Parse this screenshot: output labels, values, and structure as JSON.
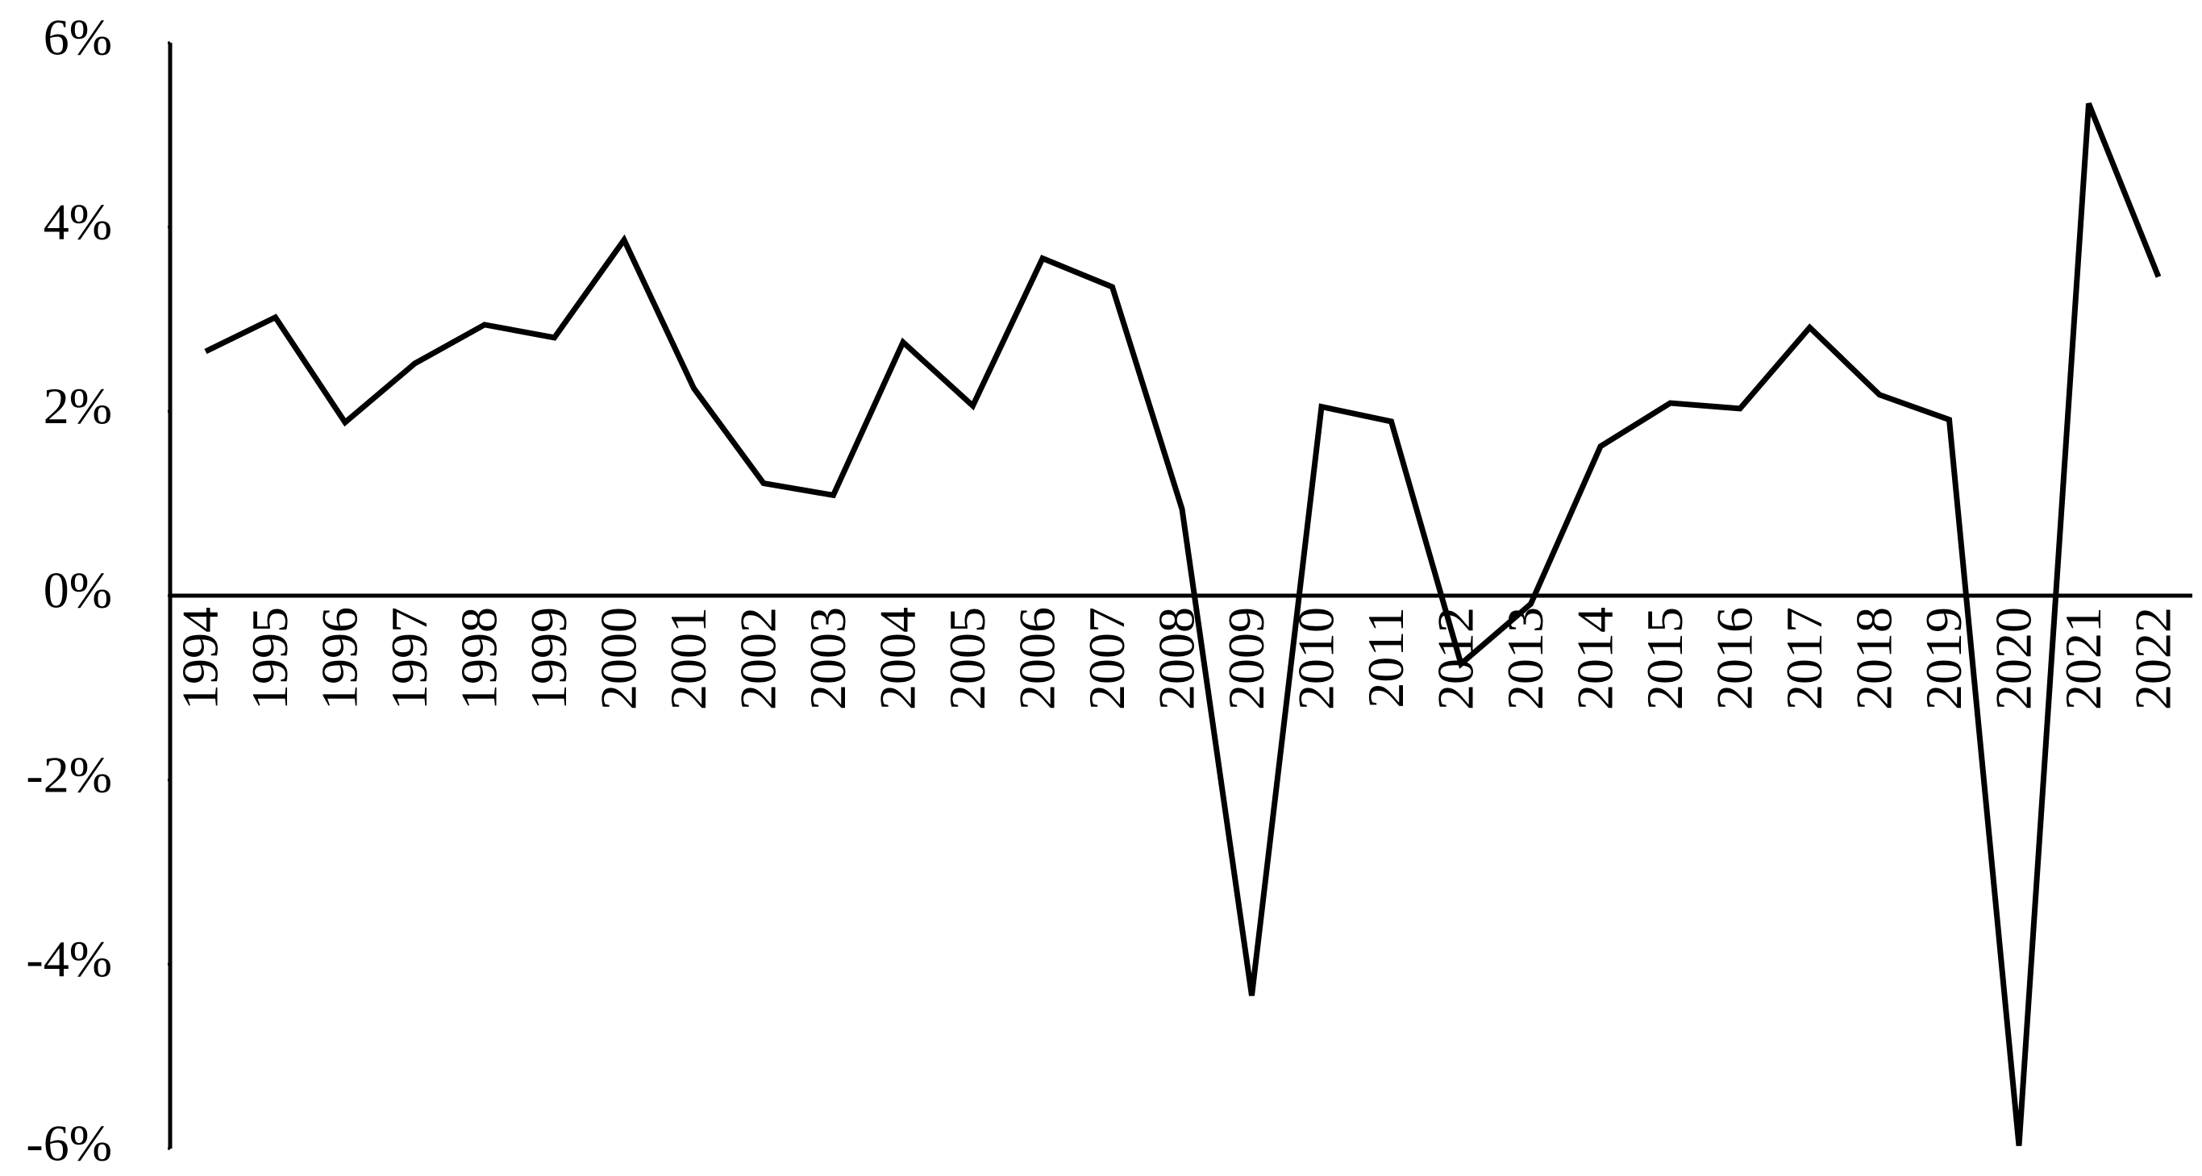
{
  "chart_data": {
    "type": "line",
    "categories": [
      "1994",
      "1995",
      "1996",
      "1997",
      "1998",
      "1999",
      "2000",
      "2001",
      "2002",
      "2003",
      "2004",
      "2005",
      "2006",
      "2007",
      "2008",
      "2009",
      "2010",
      "2011",
      "2012",
      "2013",
      "2014",
      "2015",
      "2016",
      "2017",
      "2018",
      "2019",
      "2020",
      "2021",
      "2022"
    ],
    "values": [
      2.65,
      3.02,
      1.88,
      2.52,
      2.94,
      2.8,
      3.86,
      2.25,
      1.22,
      1.09,
      2.75,
      2.06,
      3.66,
      3.35,
      0.94,
      -4.34,
      2.05,
      1.89,
      -0.74,
      -0.09,
      1.62,
      2.09,
      2.03,
      2.91,
      2.18,
      1.91,
      -5.97,
      5.34,
      3.46
    ],
    "color": "#000000",
    "ylim": [
      -6,
      6
    ],
    "yticks": [
      {
        "value": -6,
        "label": "-6%"
      },
      {
        "value": -4,
        "label": "-4%"
      },
      {
        "value": -2,
        "label": "-2%"
      },
      {
        "value": 0,
        "label": "0%"
      },
      {
        "value": 2,
        "label": "2%"
      },
      {
        "value": 4,
        "label": "4%"
      },
      {
        "value": 6,
        "label": "6%"
      }
    ],
    "grid": false
  }
}
